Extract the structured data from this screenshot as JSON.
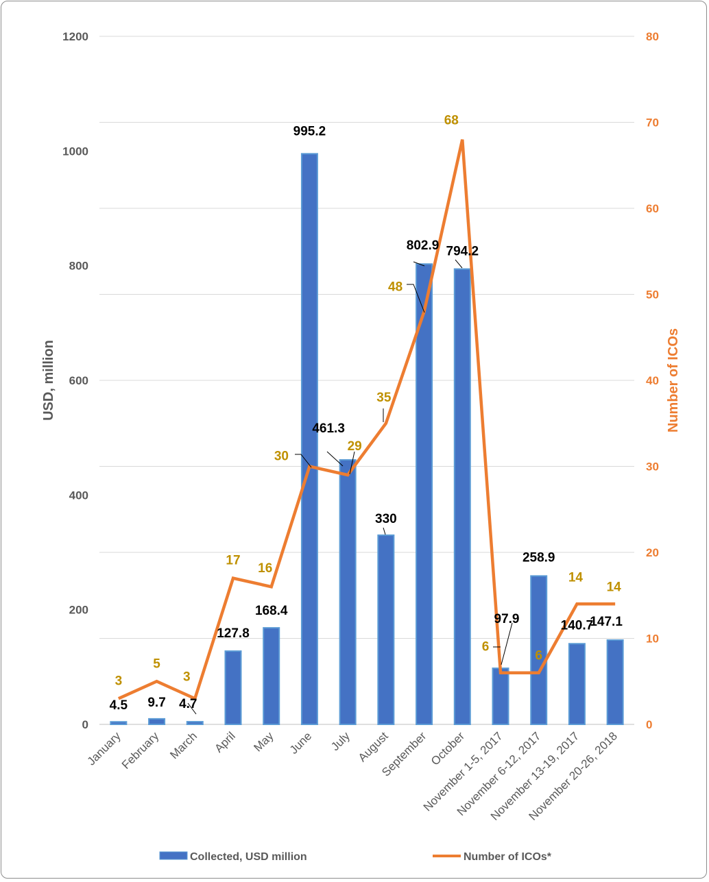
{
  "chart_data": {
    "type": "bar",
    "title": "",
    "categories": [
      "January",
      "February",
      "March",
      "April",
      "May",
      "June",
      "July",
      "August",
      "September",
      "October",
      "November 1-5, 2017",
      "November 6-12, 2017",
      "November 13-19, 2017",
      "November 20-26, 2018"
    ],
    "ylabel": "USD, million",
    "y2label": "Number of ICOs",
    "ylim": [
      0,
      1200
    ],
    "y2lim": [
      0,
      80
    ],
    "yticks": [
      "0",
      "200",
      "400",
      "600",
      "800",
      "1000",
      "1200"
    ],
    "y2ticks": [
      "0",
      "10",
      "20",
      "30",
      "40",
      "50",
      "60",
      "70",
      "80"
    ],
    "grid": true,
    "legend_position": "bottom",
    "series": [
      {
        "name": "Collected, USD million",
        "type": "bar",
        "axis": "left",
        "color": "#4472c4",
        "values": [
          4.5,
          9.7,
          4.7,
          127.8,
          168.4,
          995.2,
          461.3,
          330,
          802.9,
          794.2,
          97.9,
          258.9,
          140.7,
          147.1
        ],
        "labels": [
          "4.5",
          "9.7",
          "4.7",
          "127.8",
          "168.4",
          "995.2",
          "461.3",
          "330",
          "802.9",
          "794.2",
          "97.9",
          "258.9",
          "140.7",
          "147.1"
        ]
      },
      {
        "name": "Number of ICOs*",
        "type": "line",
        "axis": "right",
        "color": "#ed7d31",
        "values": [
          3,
          5,
          3,
          17,
          16,
          30,
          29,
          35,
          48,
          68,
          6,
          6,
          14,
          14
        ],
        "labels": [
          "3",
          "5",
          "3",
          "17",
          "16",
          "30",
          "29",
          "35",
          "48",
          "68",
          "6",
          "6",
          "14",
          "14"
        ]
      }
    ]
  }
}
